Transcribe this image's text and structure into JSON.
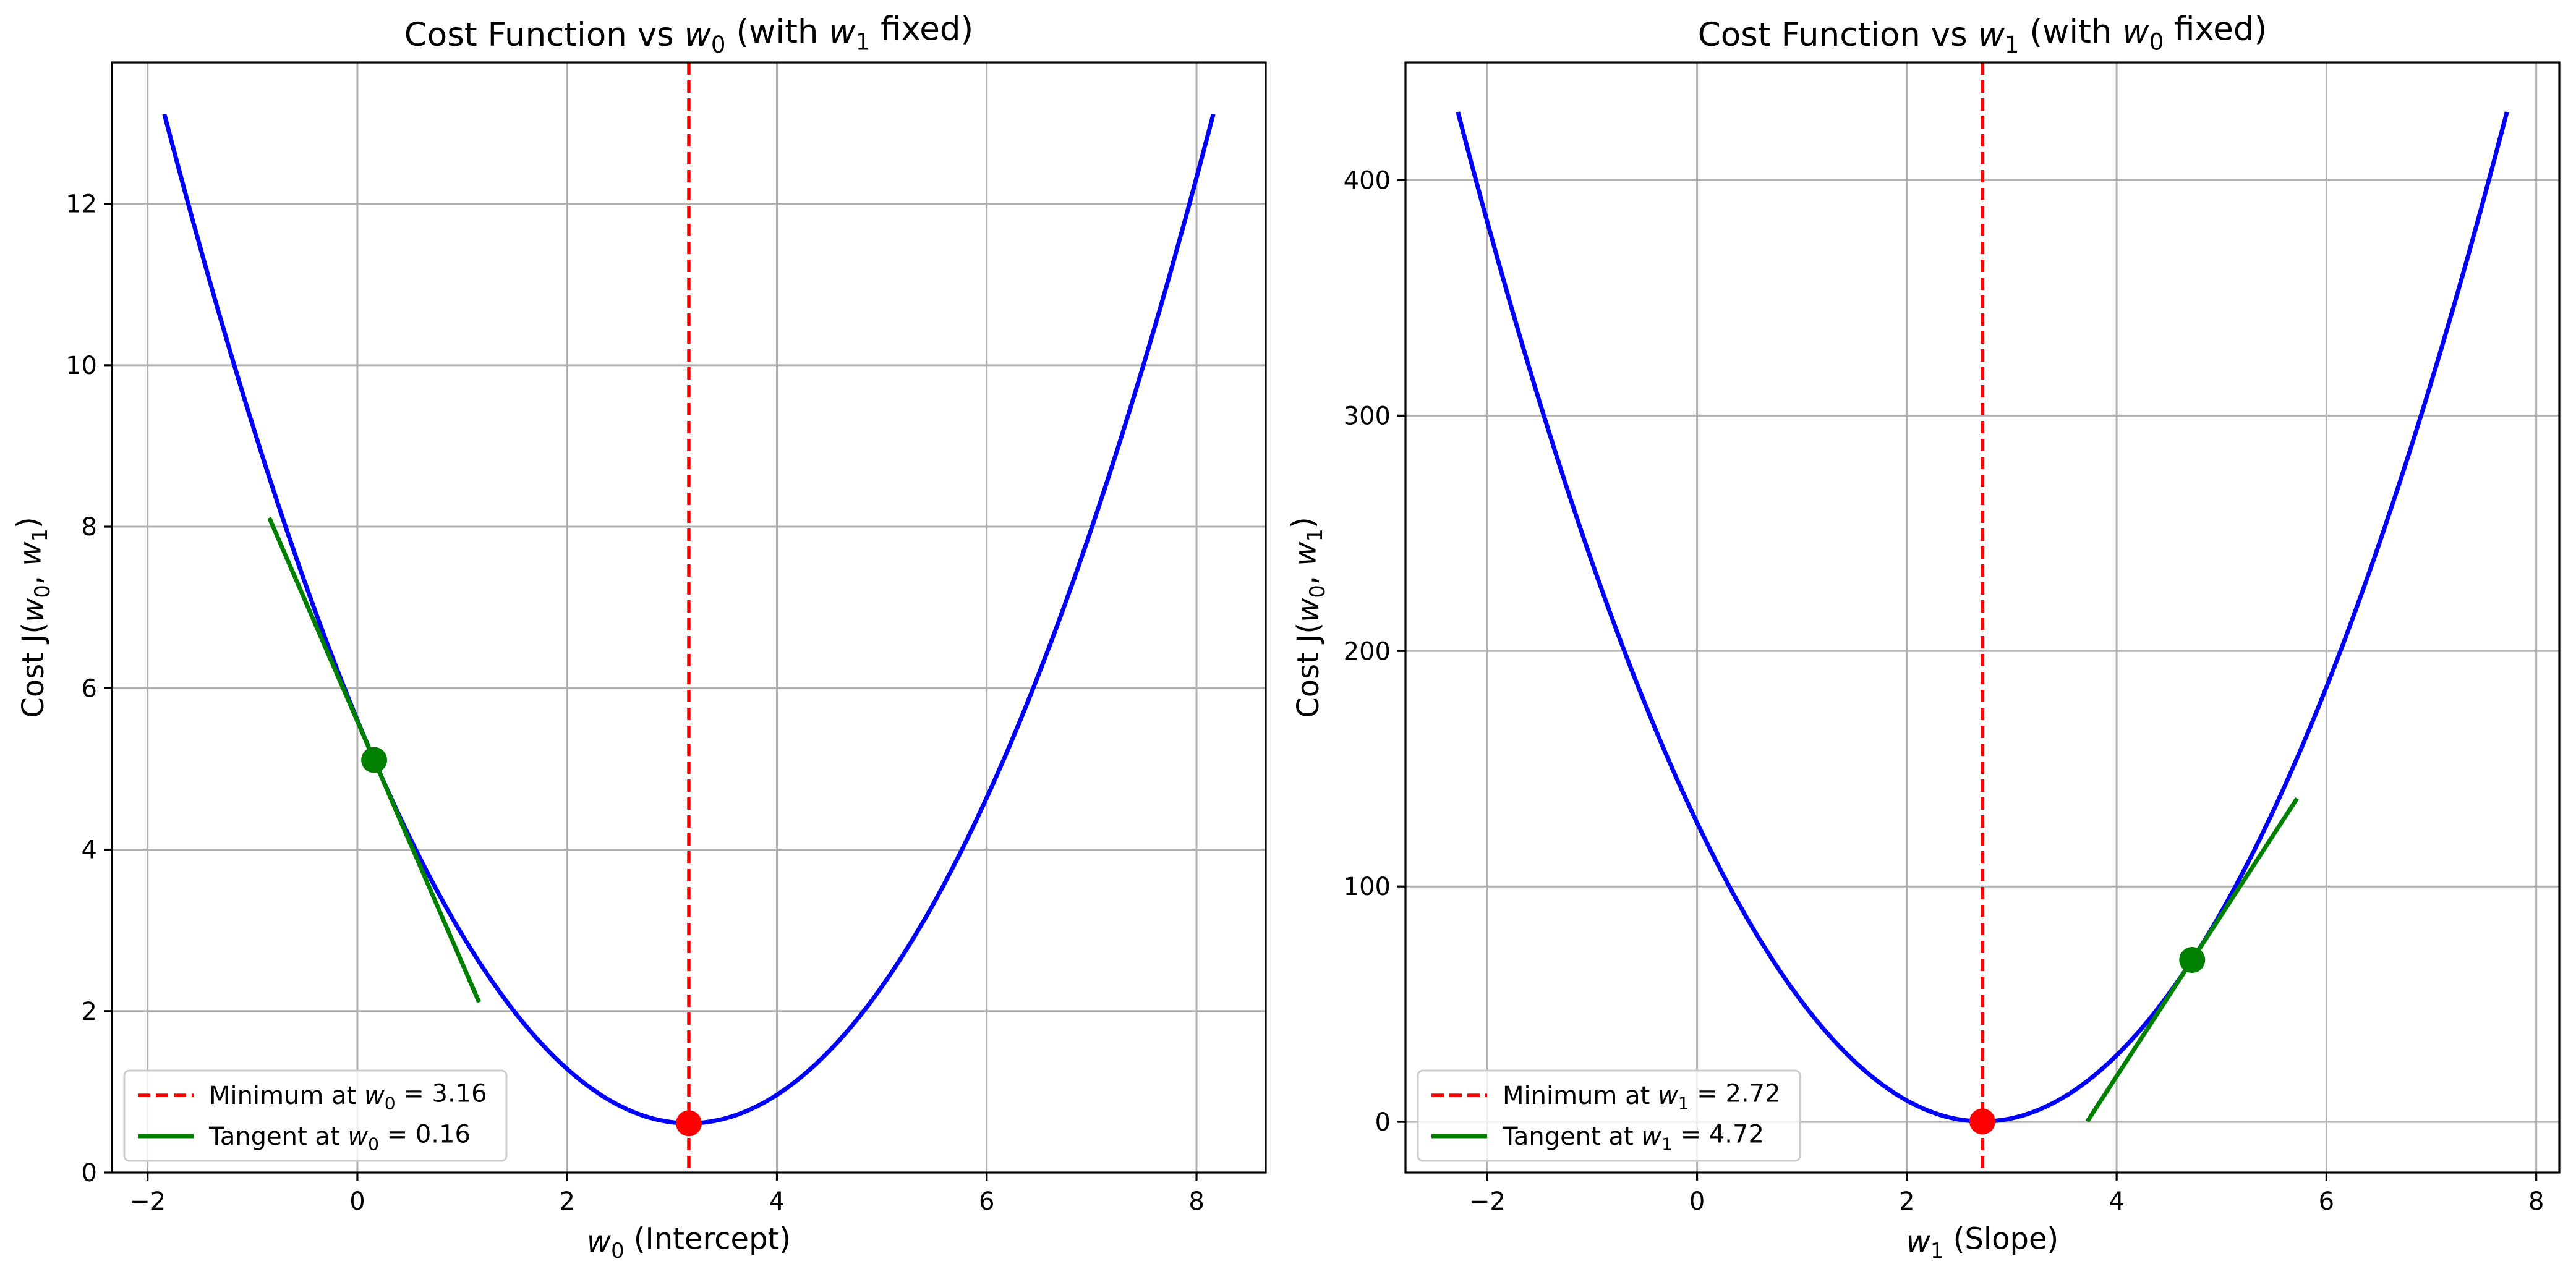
{
  "chart_data": [
    {
      "type": "line",
      "title_parts": [
        {
          "text": "Cost Function vs ",
          "italic": false
        },
        {
          "text": "w",
          "italic": true
        },
        {
          "text": "0",
          "sub": true
        },
        {
          "text": " (with ",
          "italic": false
        },
        {
          "text": "w",
          "italic": true
        },
        {
          "text": "1",
          "sub": true
        },
        {
          "text": " fixed)",
          "italic": false
        }
      ],
      "xlabel_parts": [
        {
          "text": "w",
          "italic": true
        },
        {
          "text": "0",
          "sub": true
        },
        {
          "text": " (Intercept)",
          "italic": false
        }
      ],
      "ylabel_parts": [
        {
          "text": "Cost J(",
          "italic": false
        },
        {
          "text": "w",
          "italic": true
        },
        {
          "text": "0",
          "sub": true
        },
        {
          "text": ", ",
          "italic": false
        },
        {
          "text": "w",
          "italic": true
        },
        {
          "text": "1",
          "sub": true
        },
        {
          "text": ")",
          "italic": false
        }
      ],
      "xlim": [
        -2.34,
        8.66
      ],
      "ylim": [
        0,
        13.75
      ],
      "xticks": [
        -2,
        0,
        2,
        4,
        6,
        8
      ],
      "xtick_labels": [
        "−2",
        "0",
        "2",
        "4",
        "6",
        "8"
      ],
      "yticks": [
        0,
        2,
        4,
        6,
        8,
        10,
        12
      ],
      "ytick_labels": [
        "0",
        "2",
        "4",
        "6",
        "8",
        "10",
        "12"
      ],
      "grid": true,
      "legend_position": "lower-left",
      "curve": {
        "color": "#0000ff",
        "x_range": [
          -1.84,
          8.16
        ],
        "vertex": [
          3.16,
          0.61
        ],
        "a": 0.5
      },
      "minimum_line": {
        "x": 3.16,
        "color": "#ff0000",
        "label_parts": [
          {
            "text": "Minimum at ",
            "italic": false
          },
          {
            "text": "w",
            "italic": true
          },
          {
            "text": "0",
            "sub": true
          },
          {
            "text": " = 3.16",
            "italic": false
          }
        ]
      },
      "tangent": {
        "x0": 0.16,
        "y0": 5.11,
        "slope": -3.0,
        "x_range": [
          -0.84,
          1.16
        ],
        "color": "#008000",
        "label_parts": [
          {
            "text": "Tangent at ",
            "italic": false
          },
          {
            "text": "w",
            "italic": true
          },
          {
            "text": "0",
            "sub": true
          },
          {
            "text": " = 0.16",
            "italic": false
          }
        ]
      },
      "points": [
        {
          "x": 3.16,
          "y": 0.61,
          "color": "#ff0000"
        },
        {
          "x": 0.16,
          "y": 5.11,
          "color": "#008000"
        }
      ]
    },
    {
      "type": "line",
      "title_parts": [
        {
          "text": "Cost Function vs ",
          "italic": false
        },
        {
          "text": "w",
          "italic": true
        },
        {
          "text": "1",
          "sub": true
        },
        {
          "text": " (with ",
          "italic": false
        },
        {
          "text": "w",
          "italic": true
        },
        {
          "text": "0",
          "sub": true
        },
        {
          "text": " fixed)",
          "italic": false
        }
      ],
      "xlabel_parts": [
        {
          "text": "w",
          "italic": true
        },
        {
          "text": "1",
          "sub": true
        },
        {
          "text": " (Slope)",
          "italic": false
        }
      ],
      "ylabel_parts": [
        {
          "text": "Cost J(",
          "italic": false
        },
        {
          "text": "w",
          "italic": true
        },
        {
          "text": "0",
          "sub": true
        },
        {
          "text": ", ",
          "italic": false
        },
        {
          "text": "w",
          "italic": true
        },
        {
          "text": "1",
          "sub": true
        },
        {
          "text": ")",
          "italic": false
        }
      ],
      "xlim": [
        -2.78,
        8.22
      ],
      "ylim": [
        -21.5,
        450
      ],
      "xticks": [
        -2,
        0,
        2,
        4,
        6,
        8
      ],
      "xtick_labels": [
        "−2",
        "0",
        "2",
        "4",
        "6",
        "8"
      ],
      "yticks": [
        0,
        100,
        200,
        300,
        400
      ],
      "ytick_labels": [
        "0",
        "100",
        "200",
        "300",
        "400"
      ],
      "grid": true,
      "legend_position": "lower-left",
      "curve": {
        "color": "#0000ff",
        "x_range": [
          -2.28,
          7.72
        ],
        "vertex": [
          2.72,
          0.2
        ],
        "a": 17.15
      },
      "minimum_line": {
        "x": 2.72,
        "color": "#ff0000",
        "label_parts": [
          {
            "text": "Minimum at ",
            "italic": false
          },
          {
            "text": "w",
            "italic": true
          },
          {
            "text": "1",
            "sub": true
          },
          {
            "text": " = 2.72",
            "italic": false
          }
        ]
      },
      "tangent": {
        "x0": 4.72,
        "y0": 68.8,
        "slope": 68.6,
        "x_range": [
          3.72,
          5.72
        ],
        "color": "#008000",
        "label_parts": [
          {
            "text": "Tangent at ",
            "italic": false
          },
          {
            "text": "w",
            "italic": true
          },
          {
            "text": "1",
            "sub": true
          },
          {
            "text": " = 4.72",
            "italic": false
          }
        ]
      },
      "points": [
        {
          "x": 2.72,
          "y": 0.2,
          "color": "#ff0000"
        },
        {
          "x": 4.72,
          "y": 68.8,
          "color": "#008000"
        }
      ]
    }
  ]
}
